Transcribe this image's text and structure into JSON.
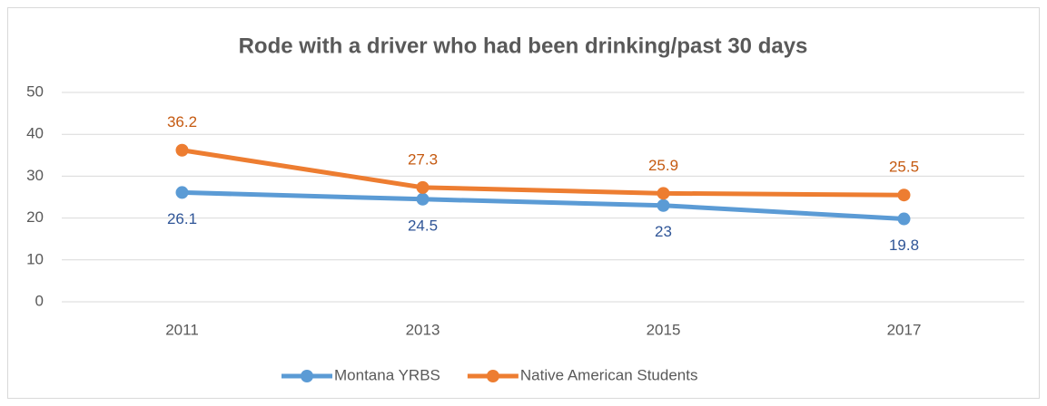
{
  "chart_data": {
    "type": "line",
    "title": "Rode with a driver who had been drinking/past 30 days",
    "categories": [
      "2011",
      "2013",
      "2015",
      "2017"
    ],
    "series": [
      {
        "name": "Montana YRBS",
        "color": "#5b9bd5",
        "label_color": "#2f5597",
        "values": [
          26.1,
          24.5,
          23,
          19.8
        ]
      },
      {
        "name": "Native American Students",
        "color": "#ed7d31",
        "label_color": "#c55a11",
        "values": [
          36.2,
          27.3,
          25.9,
          25.5
        ]
      }
    ],
    "ylim": [
      0,
      50
    ],
    "yticks": [
      0,
      10,
      20,
      30,
      40,
      50
    ],
    "grid": true,
    "legend": "bottom"
  }
}
